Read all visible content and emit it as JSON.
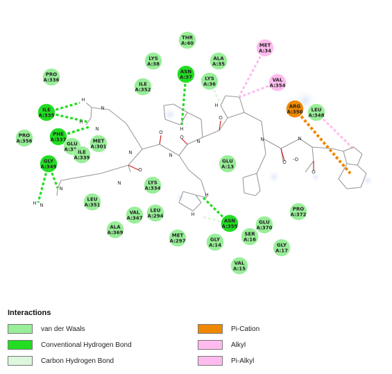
{
  "colors": {
    "vdw": "#99EE99",
    "hbond": "#22DD22",
    "chbond": "#DDF7DD",
    "pication": "#EE8800",
    "alkyl": "#FFBBEE",
    "bond": "#999999",
    "oxygen": "#D22020",
    "nitrogen": "#3040C0"
  },
  "legend": {
    "title": "Interactions",
    "items": [
      {
        "label": "van der Waals",
        "color": "#99EE99"
      },
      {
        "label": "Conventional Hydrogen Bond",
        "color": "#22DD22"
      },
      {
        "label": "Carbon Hydrogen Bond",
        "color": "#DDF7DD"
      },
      {
        "label": "Pi-Cation",
        "color": "#EE8800"
      },
      {
        "label": "Alkyl",
        "color": "#FFBBEE"
      },
      {
        "label": "Pi-Alkyl",
        "color": "#FFBBEE"
      }
    ]
  },
  "residues": [
    {
      "name": "THR",
      "num": "A:40",
      "type": "vdw"
    },
    {
      "name": "LYS",
      "num": "A:38",
      "type": "vdw"
    },
    {
      "name": "ASN",
      "num": "A:37",
      "type": "hbond"
    },
    {
      "name": "ALA",
      "num": "A:35",
      "type": "vdw"
    },
    {
      "name": "LYS",
      "num": "A:36",
      "type": "vdw"
    },
    {
      "name": "MET",
      "num": "A:34",
      "type": "alkyl"
    },
    {
      "name": "VAL",
      "num": "A:354",
      "type": "alkyl"
    },
    {
      "name": "PRO",
      "num": "A:336",
      "type": "vdw"
    },
    {
      "name": "ILE",
      "num": "A:352",
      "type": "vdw"
    },
    {
      "name": "ILE",
      "num": "A:335",
      "type": "hbond"
    },
    {
      "name": "PHE",
      "num": "A:337",
      "type": "hbond"
    },
    {
      "name": "PRO",
      "num": "A:356",
      "type": "vdw"
    },
    {
      "name": "GLU",
      "num": "A:338",
      "type": "vdw"
    },
    {
      "name": "ILE",
      "num": "A:339",
      "type": "vdw"
    },
    {
      "name": "MET",
      "num": "A:301",
      "type": "vdw"
    },
    {
      "name": "GLY",
      "num": "A:349",
      "type": "hbond"
    },
    {
      "name": "ARG",
      "num": "A:350",
      "type": "pication"
    },
    {
      "name": "LEU",
      "num": "A:348",
      "type": "vdw"
    },
    {
      "name": "GLU",
      "num": "A:13",
      "type": "vdw"
    },
    {
      "name": "LYS",
      "num": "A:334",
      "type": "vdw"
    },
    {
      "name": "LEU",
      "num": "A:351",
      "type": "vdw"
    },
    {
      "name": "VAL",
      "num": "A:347",
      "type": "vdw"
    },
    {
      "name": "LEU",
      "num": "A:294",
      "type": "vdw"
    },
    {
      "name": "ALA",
      "num": "A:369",
      "type": "vdw"
    },
    {
      "name": "MET",
      "num": "A:297",
      "type": "vdw"
    },
    {
      "name": "ASN",
      "num": "A:355",
      "type": "hbond"
    },
    {
      "name": "GLY",
      "num": "A:14",
      "type": "vdw"
    },
    {
      "name": "SER",
      "num": "A:16",
      "type": "vdw"
    },
    {
      "name": "GLU",
      "num": "A:370",
      "type": "vdw"
    },
    {
      "name": "PRO",
      "num": "A:372",
      "type": "vdw"
    },
    {
      "name": "GLY",
      "num": "A:17",
      "type": "vdw"
    },
    {
      "name": "VAL",
      "num": "A:15",
      "type": "vdw"
    }
  ],
  "atoms": {
    "h": "H",
    "o": "O",
    "n": "N",
    "o_minus": "-O"
  }
}
